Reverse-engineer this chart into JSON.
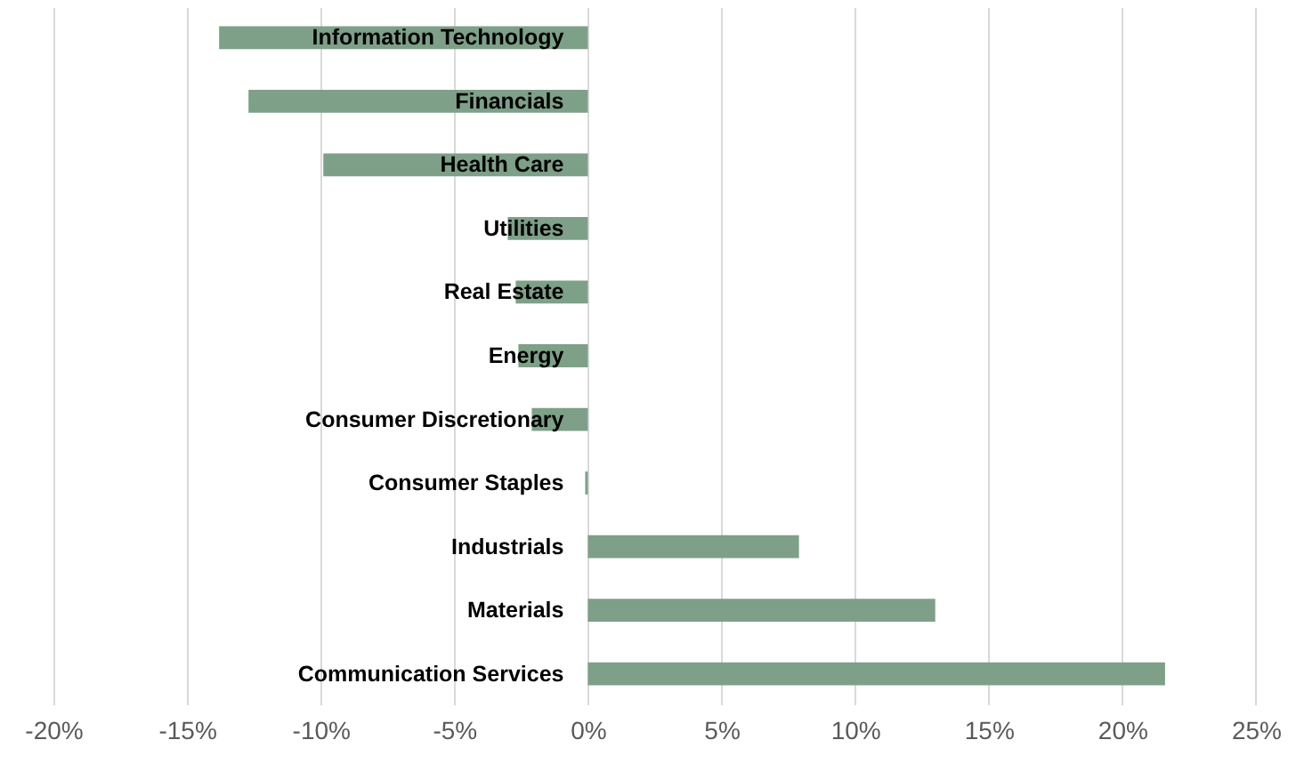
{
  "chart_data": {
    "type": "bar",
    "orientation": "horizontal",
    "categories": [
      "Information Technology",
      "Financials",
      "Health Care",
      "Utilities",
      "Real Estate",
      "Energy",
      "Consumer Discretionary",
      "Consumer Staples",
      "Industrials",
      "Materials",
      "Communication Services"
    ],
    "values": [
      -13.8,
      -12.7,
      -9.9,
      -3.0,
      -2.7,
      -2.6,
      -2.1,
      -0.1,
      7.9,
      13.0,
      21.6
    ],
    "color": "#7e9f88",
    "xlim": [
      -22,
      26.5
    ],
    "xticks": [
      {
        "value": -20,
        "label": "-20%"
      },
      {
        "value": -15,
        "label": "-15%"
      },
      {
        "value": -10,
        "label": "-10%"
      },
      {
        "value": -5,
        "label": "-5%"
      },
      {
        "value": 0,
        "label": "0%"
      },
      {
        "value": 5,
        "label": "5%"
      },
      {
        "value": 10,
        "label": "10%"
      },
      {
        "value": 15,
        "label": "15%"
      },
      {
        "value": 20,
        "label": "20%"
      },
      {
        "value": 25,
        "label": "25%"
      }
    ],
    "grid": "x"
  }
}
